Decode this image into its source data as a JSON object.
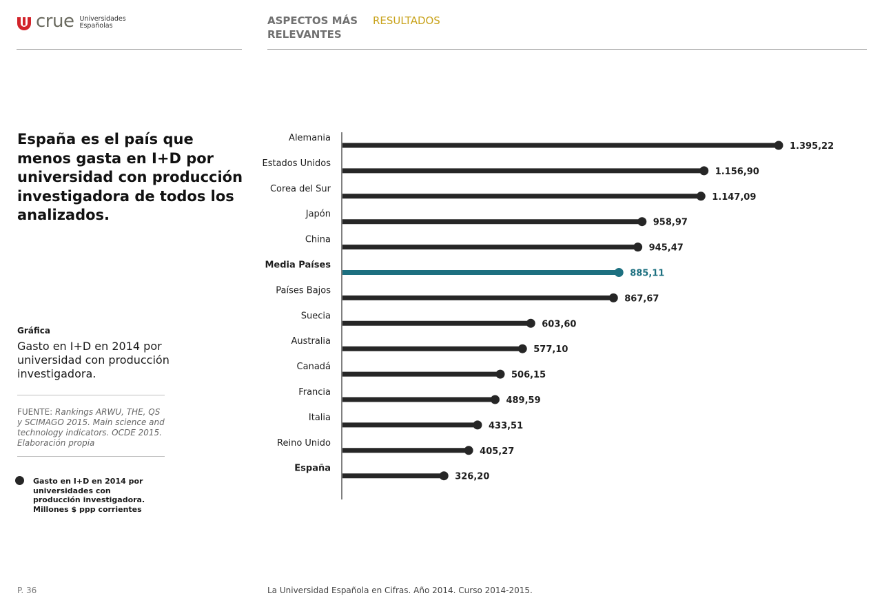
{
  "header": {
    "logo_word": "crue",
    "logo_sub_1": "Universidades",
    "logo_sub_2": "Españolas",
    "nav_1": "ASPECTOS MÁS RELEVANTES",
    "nav_2": "RESULTADOS",
    "nav_2_color": "#c8a21a"
  },
  "left": {
    "headline": "España es el país que menos gasta en I+D por universidad con producción investigadora de todos los analizados.",
    "grafica_label": "Gráfica",
    "grafica_title": "Gasto en I+D en 2014 por universidad con producción investigadora.",
    "source_label": "FUENTE:",
    "source_text": "Rankings ARWU, THE, QS y SCIMAGO 2015. Main science and technology indicators. OCDE 2015. Elaboración propia",
    "legend_text": "Gasto en I+D en 2014 por universidades con producción investigadora. Millones $ ppp corrientes"
  },
  "footer": {
    "page": "P. 36",
    "title": "La Universidad Española en Cifras. Año 2014. Curso 2014-2015."
  },
  "chart_data": {
    "type": "bar",
    "orientation": "horizontal",
    "categories": [
      "Alemania",
      "Estados Unidos",
      "Corea del Sur",
      "Japón",
      "China",
      "Media Países",
      "Países Bajos",
      "Suecia",
      "Australia",
      "Canadá",
      "Francia",
      "Italia",
      "Reino Unido",
      "España"
    ],
    "values": [
      1395.22,
      1156.9,
      1147.09,
      958.97,
      945.47,
      885.11,
      867.67,
      603.6,
      577.1,
      506.15,
      489.59,
      433.51,
      405.27,
      326.2
    ],
    "value_labels": [
      "1.395,22",
      "1.156,90",
      "1.147,09",
      "958,97",
      "945,47",
      "885,11",
      "867,67",
      "603,60",
      "577,10",
      "506,15",
      "489,59",
      "433,51",
      "405,27",
      "326,20"
    ],
    "bold_categories": [
      "Media Países",
      "España"
    ],
    "highlight_category": "Media Países",
    "series": [
      {
        "name": "Gasto en I+D en 2014 por universidades con producción investigadora. Millones $ ppp corrientes",
        "color": "#262626"
      }
    ],
    "highlight_color": "#1d7080",
    "xlim": [
      0,
      1395.22
    ],
    "grid": false,
    "axis_labels_shown": false
  }
}
